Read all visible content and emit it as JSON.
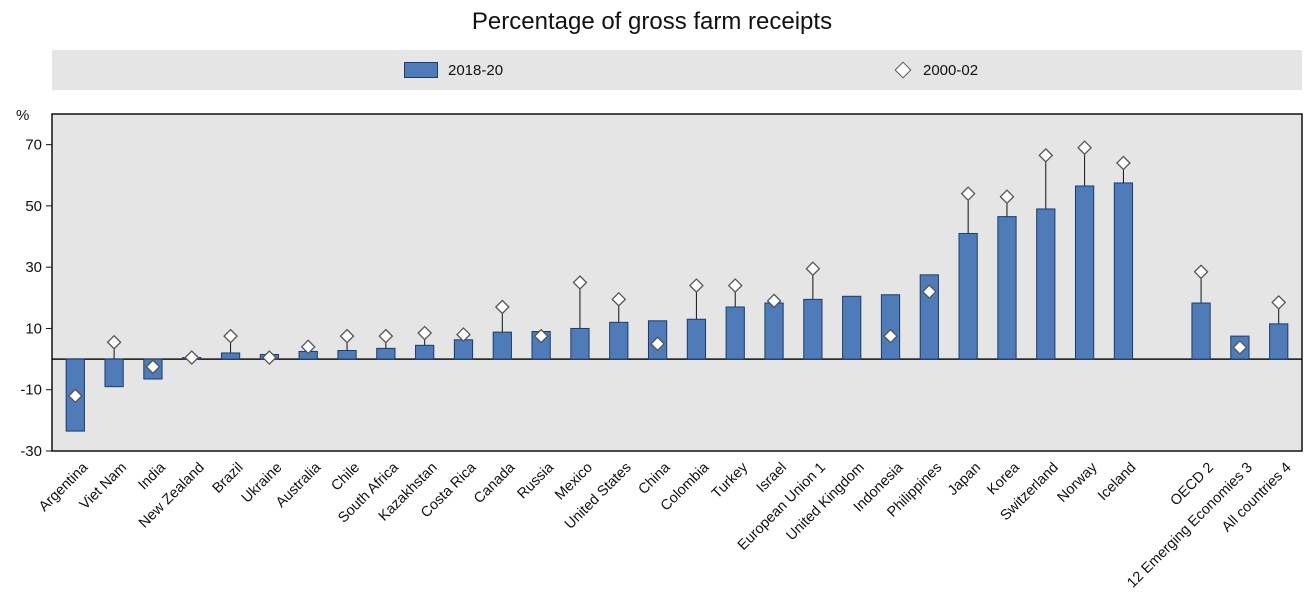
{
  "chart_data": {
    "type": "bar",
    "title": "Percentage of gross farm receipts",
    "ylabel": "%",
    "ylim": [
      -30,
      80
    ],
    "yticks": [
      -30,
      -10,
      10,
      30,
      50,
      70
    ],
    "categories": [
      "Argentina",
      "Viet Nam",
      "India",
      "New Zealand",
      "Brazil",
      "Ukraine",
      "Australia",
      "Chile",
      "South Africa",
      "Kazakhstan",
      "Costa Rica",
      "Canada",
      "Russia",
      "Mexico",
      "United States",
      "China",
      "Colombia",
      "Turkey",
      "Israel",
      "European Union 1",
      "United Kingdom",
      "Indonesia",
      "Philippines",
      "Japan",
      "Korea",
      "Switzerland",
      "Norway",
      "Iceland",
      "OECD 2",
      "12 Emerging Economies 3",
      "All countries 4"
    ],
    "gap_after_index": 27,
    "series": [
      {
        "name": "2018-20",
        "type": "bar",
        "values": [
          -23.5,
          -9,
          -6.5,
          0.5,
          2,
          1.5,
          2.5,
          2.8,
          3.5,
          4.5,
          6.3,
          8.8,
          9,
          10,
          12,
          12.5,
          13,
          17,
          18.3,
          19.5,
          20.5,
          21,
          27.5,
          41,
          46.5,
          49,
          56.5,
          57.5,
          18.3,
          7.5,
          11.5
        ]
      },
      {
        "name": "2000-02",
        "type": "marker",
        "values": [
          -12,
          5.5,
          -2.5,
          0.5,
          7.5,
          0.5,
          4,
          7.5,
          7.5,
          8.5,
          8,
          17,
          7.5,
          25,
          19.5,
          5,
          24,
          24,
          19,
          29.5,
          null,
          7.5,
          22,
          54,
          53,
          66.5,
          69,
          64,
          28.5,
          3.8,
          18.5
        ]
      }
    ],
    "legend": {
      "placement": "top",
      "entries": [
        "2018-20",
        "2000-02"
      ]
    },
    "grid": false,
    "colors": {
      "bar_fill": "#4f7bb8",
      "bar_stroke": "#1a3d6b",
      "marker_fill": "#ffffff",
      "marker_stroke": "#555555",
      "plot_bg": "#e5e5e5"
    }
  }
}
